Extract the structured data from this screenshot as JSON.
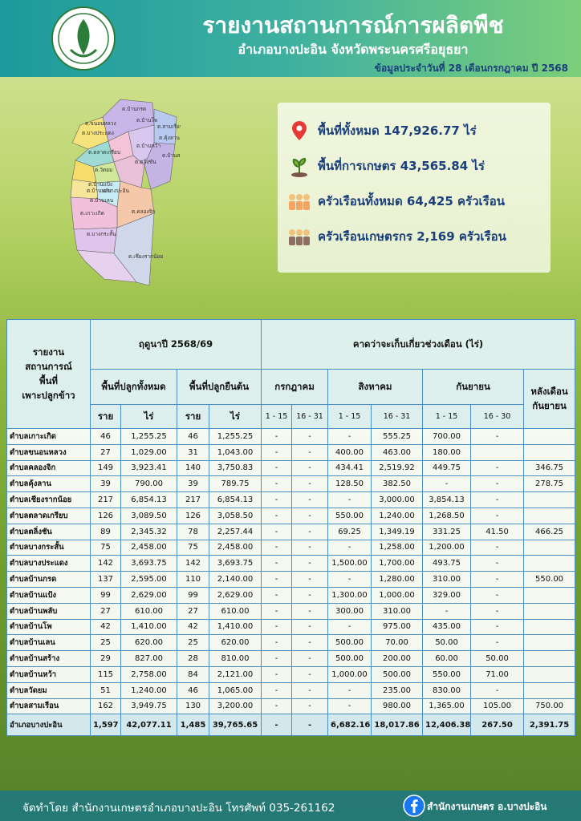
{
  "header": {
    "title": "รายงานสถานการณ์การผลิตพืช",
    "subtitle": "อำเภอบางปะอิน จังหวัดพระนครศรีอยุธยา",
    "date": "ข้อมูลประจำวันที่ 28 เดือนกรกฎาคม ปี 2568"
  },
  "map": {
    "labels": [
      "ต.บ้านกรด",
      "ต.บางประแดง",
      "ต.ขนอนหลวง",
      "ต.สามเรือน",
      "ต.ตลาดเกรียบ",
      "ต.บ้านโพ",
      "ต.คุ้งลาน",
      "ต.บ้านหว้า",
      "ต.บ้านสร้าง",
      "ต.วัดยม",
      "ต.บ้านแป้ง",
      "ต.บ้านพลับ",
      "ต.บ้านเลน",
      "ต.เกาะเกิด",
      "ต.คลองจิก",
      "ต.บางกระสั้น",
      "ต.เชียงรากน้อย",
      "ต.ตลิ่งชัน",
      "อ.บางปะอิน"
    ]
  },
  "summary": [
    "พื้นที่ทั้งหมด 147,926.77 ไร่",
    "พื้นที่การเกษตร 43,565.84 ไร่",
    "ครัวเรือนทั้งหมด 64,425 ครัวเรือน",
    "ครัวเรือนเกษตรกร 2,169 ครัวเรือน"
  ],
  "table": {
    "corner": [
      "รายงาน",
      "สถานการณ์",
      "พื้นที่",
      "เพาะปลูกข้าว"
    ],
    "season": "ฤดูนาปี 2568/69",
    "harvest": "คาดว่าจะเก็บเกี่ยวช่วงเดือน (ไร่)",
    "area_groups": [
      "พื้นที่ปลูกทั้งหมด",
      "พื้นที่ปลูกยืนต้น"
    ],
    "months": [
      "กรกฎาคม",
      "สิงหาคม",
      "กันยายน"
    ],
    "after": [
      "หลังเดือน",
      "กันยายน"
    ],
    "units": [
      "ราย",
      "ไร่",
      "ราย",
      "ไร่"
    ],
    "periods": [
      "1 - 15",
      "16 - 31",
      "1 - 15",
      "16 - 31",
      "1 - 15",
      "16 - 30"
    ],
    "rows": [
      [
        "ตำบลเกาะเกิด",
        "46",
        "1,255.25",
        "46",
        "1,255.25",
        "-",
        "-",
        "-",
        "555.25",
        "700.00",
        "-",
        null
      ],
      [
        "ตำบลขนอนหลวง",
        "27",
        "1,029.00",
        "31",
        "1,043.00",
        "-",
        "-",
        "400.00",
        "463.00",
        "180.00",
        null,
        null
      ],
      [
        "ตำบลคลองจิก",
        "149",
        "3,923.41",
        "140",
        "3,750.83",
        "-",
        "-",
        "434.41",
        "2,519.92",
        "449.75",
        "-",
        "346.75"
      ],
      [
        "ตำบลคุ้งลาน",
        "39",
        "790.00",
        "39",
        "789.75",
        "-",
        "-",
        "128.50",
        "382.50",
        "-",
        "-",
        "278.75"
      ],
      [
        "ตำบลเชียงรากน้อย",
        "217",
        "6,854.13",
        "217",
        "6,854.13",
        "-",
        "-",
        "-",
        "3,000.00",
        "3,854.13",
        "-",
        null
      ],
      [
        "ตำบลตลาดเกรียบ",
        "126",
        "3,089.50",
        "126",
        "3,058.50",
        "-",
        "-",
        "550.00",
        "1,240.00",
        "1,268.50",
        "-",
        null
      ],
      [
        "ตำบลตลิ่งชัน",
        "89",
        "2,345.32",
        "78",
        "2,257.44",
        "-",
        "-",
        "69.25",
        "1,349.19",
        "331.25",
        "41.50",
        "466.25"
      ],
      [
        "ตำบลบางกระสั้น",
        "75",
        "2,458.00",
        "75",
        "2,458.00",
        "-",
        "-",
        "-",
        "1,258.00",
        "1,200.00",
        "-",
        null
      ],
      [
        "ตำบลบางประแดง",
        "142",
        "3,693.75",
        "142",
        "3,693.75",
        "-",
        "-",
        "1,500.00",
        "1,700.00",
        "493.75",
        "-",
        null
      ],
      [
        "ตำบลบ้านกรด",
        "137",
        "2,595.00",
        "110",
        "2,140.00",
        "-",
        "-",
        "-",
        "1,280.00",
        "310.00",
        "-",
        "550.00"
      ],
      [
        "ตำบลบ้านแป้ง",
        "99",
        "2,629.00",
        "99",
        "2,629.00",
        "-",
        "-",
        "1,300.00",
        "1,000.00",
        "329.00",
        "-",
        null
      ],
      [
        "ตำบลบ้านพลับ",
        "27",
        "610.00",
        "27",
        "610.00",
        "-",
        "-",
        "300.00",
        "310.00",
        "-",
        "-",
        null
      ],
      [
        "ตำบลบ้านโพ",
        "42",
        "1,410.00",
        "42",
        "1,410.00",
        "-",
        "-",
        "-",
        "975.00",
        "435.00",
        "-",
        null
      ],
      [
        "ตำบลบ้านเลน",
        "25",
        "620.00",
        "25",
        "620.00",
        "-",
        "-",
        "500.00",
        "70.00",
        "50.00",
        "-",
        null
      ],
      [
        "ตำบลบ้านสร้าง",
        "29",
        "827.00",
        "28",
        "810.00",
        "-",
        "-",
        "500.00",
        "200.00",
        "60.00",
        "50.00",
        null
      ],
      [
        "ตำบลบ้านหว้า",
        "115",
        "2,758.00",
        "84",
        "2,121.00",
        "-",
        "-",
        "1,000.00",
        "500.00",
        "550.00",
        "71.00",
        null
      ],
      [
        "ตำบลวัดยม",
        "51",
        "1,240.00",
        "46",
        "1,065.00",
        "-",
        "-",
        "-",
        "235.00",
        "830.00",
        "-",
        null
      ],
      [
        "ตำบลสามเรือน",
        "162",
        "3,949.75",
        "130",
        "3,200.00",
        "-",
        "-",
        "-",
        "980.00",
        "1,365.00",
        "105.00",
        "750.00"
      ]
    ],
    "total": [
      "อำเภอบางปะอิน",
      "1,597",
      "42,077.11",
      "1,485",
      "39,765.65",
      "-",
      "-",
      "6,682.16",
      "18,017.86",
      "12,406.38",
      "267.50",
      "2,391.75"
    ]
  },
  "footer": {
    "credit": "จัดทำโดย สำนักงานเกษตรอำเภอบางปะอิน โทรศัพท์ 035-261162",
    "facebook": "สำนักงานเกษตร อ.บางปะอิน"
  }
}
